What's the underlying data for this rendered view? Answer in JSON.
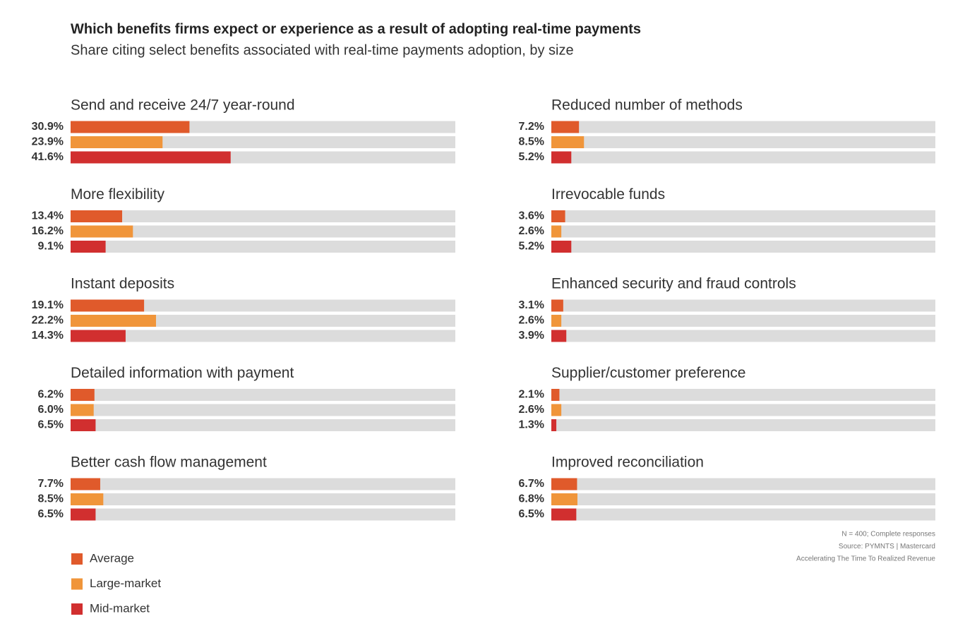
{
  "chart_data": {
    "type": "bar",
    "title": "Which benefits firms expect or experience as a result of adopting real-time payments",
    "subtitle": "Share citing select benefits associated with real-time payments adoption, by size",
    "categories": [
      "Send and receive 24/7 year-round",
      "More flexibility",
      "Instant deposits",
      "Detailed information with payment",
      "Better cash flow management",
      "Reduced number of methods",
      "Irrevocable funds",
      "Enhanced security and fraud controls",
      "Supplier/customer preference",
      "Improved reconciliation"
    ],
    "series": [
      {
        "name": "Average",
        "color": "#e05a2b",
        "values": [
          30.9,
          13.4,
          19.1,
          6.2,
          7.7,
          7.2,
          3.6,
          3.1,
          2.1,
          6.7
        ],
        "value_labels": [
          "30.9%",
          "13.4%",
          "19.1%",
          "6.2%",
          "7.7%",
          "7.2%",
          "3.6%",
          "3.1%",
          "2.1%",
          "6.7%"
        ]
      },
      {
        "name": "Large-market",
        "color": "#f0953a",
        "values": [
          23.9,
          16.2,
          22.2,
          6.0,
          8.5,
          8.5,
          2.6,
          2.6,
          2.6,
          6.8
        ],
        "value_labels": [
          "23.9%",
          "16.2%",
          "22.2%",
          "6.0%",
          "8.5%",
          "8.5%",
          "2.6%",
          "2.6%",
          "2.6%",
          "6.8%"
        ]
      },
      {
        "name": "Mid-market",
        "color": "#d12f2f",
        "values": [
          41.6,
          9.1,
          14.3,
          6.5,
          6.5,
          5.2,
          5.2,
          3.9,
          1.3,
          6.5
        ],
        "value_labels": [
          "41.6%",
          "9.1%",
          "14.3%",
          "6.5%",
          "6.5%",
          "5.2%",
          "5.2%",
          "3.9%",
          "1.3%",
          "6.5%"
        ]
      }
    ],
    "xlim": [
      0,
      100
    ],
    "track_color": "#dcdcdc",
    "source_notes": [
      "N = 400; Complete responses",
      "Source: PYMNTS  |  Mastercard",
      "Accelerating The Time To Realized Revenue"
    ]
  }
}
